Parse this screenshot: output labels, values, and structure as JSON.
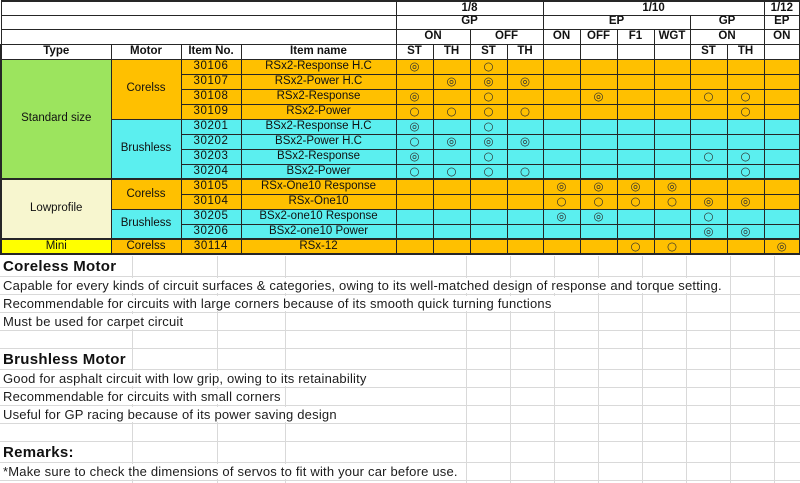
{
  "colors": {
    "orange": "#FFC000",
    "cyan": "#5BEFEF",
    "green": "#9CE45E",
    "pale_yellow": "#F7F6CF",
    "yellow": "#FFFF00",
    "border": "#262626",
    "gridline": "#D9D9D9"
  },
  "table": {
    "left_headers": [
      "Type",
      "Motor",
      "Item No.",
      "Item name"
    ],
    "scale_row": [
      {
        "label": "1/8",
        "span": 4
      },
      {
        "label": "1/10",
        "span": 6
      },
      {
        "label": "1/12",
        "span": 1
      }
    ],
    "power_row": [
      {
        "label": "GP",
        "span": 4
      },
      {
        "label": "EP",
        "span": 4
      },
      {
        "label": "GP",
        "span": 2
      },
      {
        "label": "EP",
        "span": 1
      }
    ],
    "mode_row": [
      {
        "label": "ON",
        "span": 2
      },
      {
        "label": "OFF",
        "span": 2
      },
      {
        "label": "ON",
        "span": 1
      },
      {
        "label": "OFF",
        "span": 1
      },
      {
        "label": "F1",
        "span": 1
      },
      {
        "label": "WGT",
        "span": 1
      },
      {
        "label": "ON",
        "span": 2
      },
      {
        "label": "ON",
        "span": 1
      }
    ],
    "channel_row": [
      "ST",
      "TH",
      "ST",
      "TH",
      "",
      "",
      "",
      "",
      "ST",
      "TH",
      ""
    ],
    "type_groups": [
      {
        "label": "Standard size",
        "rows": 8,
        "style": "green"
      },
      {
        "label": "Lowprofile",
        "rows": 4,
        "style": "pale"
      },
      {
        "label": "Mini",
        "rows": 1,
        "style": "yellow"
      }
    ],
    "motor_groups": [
      {
        "label": "Corelss",
        "rows": 4,
        "style": "orange"
      },
      {
        "label": "Brushless",
        "rows": 4,
        "style": "cyan"
      },
      {
        "label": "Corelss",
        "rows": 2,
        "style": "orange"
      },
      {
        "label": "Brushless",
        "rows": 2,
        "style": "cyan"
      },
      {
        "label": "Corelss",
        "rows": 1,
        "style": "orange"
      }
    ],
    "rows": [
      {
        "item_no": "30106",
        "item_name": "RSx2-Response H.C",
        "style": "orange",
        "marks": [
          "◎",
          "",
          "○",
          "",
          "",
          "",
          "",
          "",
          "",
          "",
          ""
        ]
      },
      {
        "item_no": "30107",
        "item_name": "RSx2-Power H.C",
        "style": "orange",
        "marks": [
          "",
          "◎",
          "◎",
          "◎",
          "",
          "",
          "",
          "",
          "",
          "",
          ""
        ]
      },
      {
        "item_no": "30108",
        "item_name": "RSx2-Response",
        "style": "orange",
        "marks": [
          "◎",
          "",
          "○",
          "",
          "",
          "◎",
          "",
          "",
          "○",
          "○",
          ""
        ]
      },
      {
        "item_no": "30109",
        "item_name": "RSx2-Power",
        "style": "orange",
        "marks": [
          "○",
          "○",
          "○",
          "○",
          "",
          "",
          "",
          "",
          "",
          "○",
          ""
        ]
      },
      {
        "item_no": "30201",
        "item_name": "BSx2-Response H.C",
        "style": "cyan",
        "marks": [
          "◎",
          "",
          "○",
          "",
          "",
          "",
          "",
          "",
          "",
          "",
          ""
        ]
      },
      {
        "item_no": "30202",
        "item_name": "BSx2-Power H.C",
        "style": "cyan",
        "marks": [
          "○",
          "◎",
          "◎",
          "◎",
          "",
          "",
          "",
          "",
          "",
          "",
          ""
        ]
      },
      {
        "item_no": "30203",
        "item_name": "BSx2-Response",
        "style": "cyan",
        "marks": [
          "◎",
          "",
          "○",
          "",
          "",
          "",
          "",
          "",
          "○",
          "○",
          ""
        ]
      },
      {
        "item_no": "30204",
        "item_name": "BSx2-Power",
        "style": "cyan",
        "marks": [
          "○",
          "○",
          "○",
          "○",
          "",
          "",
          "",
          "",
          "",
          "○",
          ""
        ]
      },
      {
        "item_no": "30105",
        "item_name": "RSx-One10 Response",
        "style": "orange",
        "marks": [
          "",
          "",
          "",
          "",
          "◎",
          "◎",
          "◎",
          "◎",
          "",
          "",
          ""
        ]
      },
      {
        "item_no": "30104",
        "item_name": "RSx-One10",
        "style": "orange",
        "marks": [
          "",
          "",
          "",
          "",
          "○",
          "○",
          "○",
          "○",
          "◎",
          "◎",
          ""
        ]
      },
      {
        "item_no": "30205",
        "item_name": "BSx2-one10 Response",
        "style": "cyan",
        "marks": [
          "",
          "",
          "",
          "",
          "◎",
          "◎",
          "",
          "",
          "○",
          "",
          ""
        ]
      },
      {
        "item_no": "30206",
        "item_name": "BSx2-one10 Power",
        "style": "cyan",
        "marks": [
          "",
          "",
          "",
          "",
          "",
          "",
          "",
          "",
          "◎",
          "◎",
          ""
        ]
      },
      {
        "item_no": "30114",
        "item_name": "RSx-12",
        "style": "orange",
        "marks": [
          "",
          "",
          "",
          "",
          "",
          "",
          "○",
          "○",
          "",
          "",
          "◎"
        ]
      }
    ],
    "legend": {
      "double_circle": "◎",
      "circle": "○"
    }
  },
  "notes": {
    "lines": [
      {
        "kind": "heading",
        "text": "Coreless Motor"
      },
      {
        "kind": "body",
        "text": "Capable for every kinds of circuit surfaces & categories, owing to its well-matched design of response and torque setting."
      },
      {
        "kind": "body",
        "text": "Recommendable for circuits with large corners because of its smooth quick turning functions"
      },
      {
        "kind": "body",
        "text": "Must be used for carpet circuit"
      },
      {
        "kind": "blank",
        "text": ""
      },
      {
        "kind": "heading",
        "text": "Brushless Motor"
      },
      {
        "kind": "body",
        "text": "Good for asphalt circuit with low grip, owing to its retainability"
      },
      {
        "kind": "body",
        "text": "Recommendable for circuits with small corners"
      },
      {
        "kind": "body",
        "text": "Useful for GP racing because of its power saving design"
      },
      {
        "kind": "blank",
        "text": ""
      },
      {
        "kind": "heading",
        "text": "Remarks:"
      },
      {
        "kind": "body",
        "text": "*Make sure to check the dimensions of servos to fit with your car before use."
      }
    ]
  }
}
